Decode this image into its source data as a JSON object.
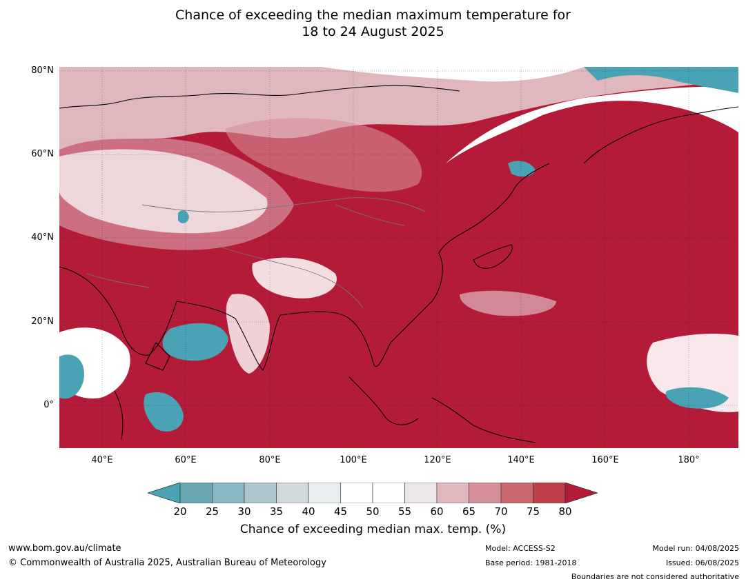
{
  "title": {
    "line1": "Chance of exceeding the median maximum temperature for",
    "line2": "18 to 24 August 2025"
  },
  "map": {
    "lat_labels": [
      "80°N",
      "60°N",
      "40°N",
      "20°N",
      "0°"
    ],
    "lon_labels": [
      "40°E",
      "60°E",
      "80°E",
      "100°E",
      "120°E",
      "140°E",
      "160°E",
      "180°"
    ],
    "colors": {
      "dominant": "#b31b39",
      "low": "#4aa3b4",
      "neutral": "#ffffff"
    }
  },
  "colorbar": {
    "ticks": [
      "20",
      "25",
      "30",
      "35",
      "40",
      "45",
      "50",
      "55",
      "60",
      "65",
      "70",
      "75",
      "80"
    ],
    "colors": [
      "#6aa7b3",
      "#87b7c2",
      "#adc6cb",
      "#d2d9dc",
      "#e8eeef",
      "#ffffff",
      "#ffffff",
      "#ece6e8",
      "#e0b7bd",
      "#d58f98",
      "#c9676f",
      "#bd3f4a"
    ],
    "under_color": "#4aa3b4",
    "over_color": "#b31b39",
    "label": "Chance of exceeding median max. temp. (%)"
  },
  "footer": {
    "website": "www.bom.gov.au/climate",
    "copyright": "© Commonwealth of Australia 2025, Australian Bureau of Meteorology",
    "model": "Model: ACCESS-S2",
    "base_period": "Base period: 1981-2018",
    "model_run": "Model run: 04/08/2025",
    "issued": "Issued: 06/08/2025",
    "disclaimer": "Boundaries are not considered authoritative"
  }
}
